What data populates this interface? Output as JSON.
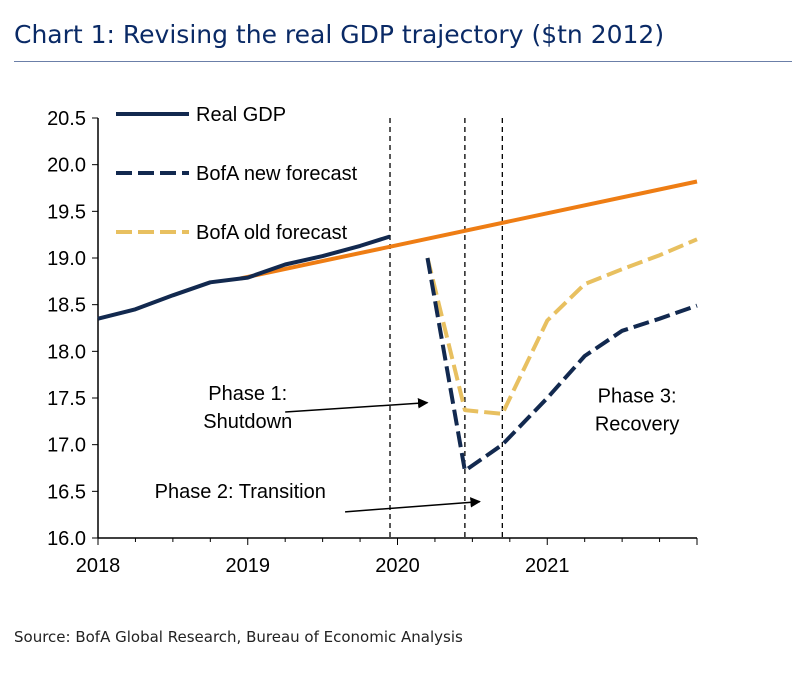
{
  "title": "Chart 1: Revising the real GDP trajectory ($tn 2012)",
  "source": "Source: BofA Global Research, Bureau of Economic Analysis",
  "chart_data": {
    "type": "line",
    "title": "Chart 1: Revising the real GDP trajectory ($tn 2012)",
    "xlabel": "",
    "ylabel": "",
    "ylim": [
      16.0,
      20.5
    ],
    "xlim": [
      2018.0,
      2022.0
    ],
    "yticks": [
      "20.5",
      "20.0",
      "19.5",
      "19.0",
      "18.5",
      "18.0",
      "17.5",
      "17.0",
      "16.5",
      "16.0"
    ],
    "xticks": [
      {
        "label": "2018",
        "value": 2018.0
      },
      {
        "label": "2019",
        "value": 2019.0
      },
      {
        "label": "2020",
        "value": 2020.0
      },
      {
        "label": "2021",
        "value": 2021.0
      }
    ],
    "grid": false,
    "legend_position": "top-left",
    "series": [
      {
        "name": "Real GDP",
        "style": "solid",
        "color": "#12294f",
        "x": [
          2018.0,
          2018.25,
          2018.5,
          2018.75,
          2019.0,
          2019.25,
          2019.5,
          2019.75,
          2019.95
        ],
        "y": [
          18.35,
          18.45,
          18.6,
          18.74,
          18.79,
          18.93,
          19.02,
          19.13,
          19.23
        ]
      },
      {
        "name": "BofA new forecast",
        "style": "dashed",
        "color": "#12294f",
        "x": [
          2020.2,
          2020.45,
          2020.7,
          2021.0,
          2021.25,
          2021.5,
          2021.75,
          2022.0
        ],
        "y": [
          19.0,
          16.72,
          17.0,
          17.5,
          17.95,
          18.22,
          18.35,
          18.49
        ]
      },
      {
        "name": "BofA old forecast",
        "style": "dashed",
        "color": "#e8c060",
        "x": [
          2020.2,
          2020.45,
          2020.7,
          2021.0,
          2021.25,
          2021.5,
          2021.75,
          2022.0
        ],
        "y": [
          19.0,
          17.37,
          17.33,
          18.33,
          18.72,
          18.88,
          19.03,
          19.2
        ]
      },
      {
        "name": "",
        "style": "solid",
        "color": "#ee7d14",
        "x": [
          2018.95,
          2022.0
        ],
        "y": [
          18.78,
          19.82
        ]
      }
    ],
    "vlines": [
      2019.95,
      2020.45,
      2020.7
    ],
    "annotations": [
      {
        "lines": [
          "Phase 1:",
          "Shutdown"
        ],
        "x": 2019.0,
        "y": 17.48,
        "arrow_from": [
          2019.25,
          17.35
        ],
        "arrow_to": [
          2020.2,
          17.45
        ]
      },
      {
        "lines": [
          "Phase 2: Transition"
        ],
        "x": 2018.95,
        "y": 16.43,
        "arrow_from": [
          2019.65,
          16.28
        ],
        "arrow_to": [
          2020.55,
          16.39
        ]
      },
      {
        "lines": [
          "Phase 3:",
          "Recovery"
        ],
        "x": 2021.6,
        "y": 17.45
      }
    ]
  }
}
